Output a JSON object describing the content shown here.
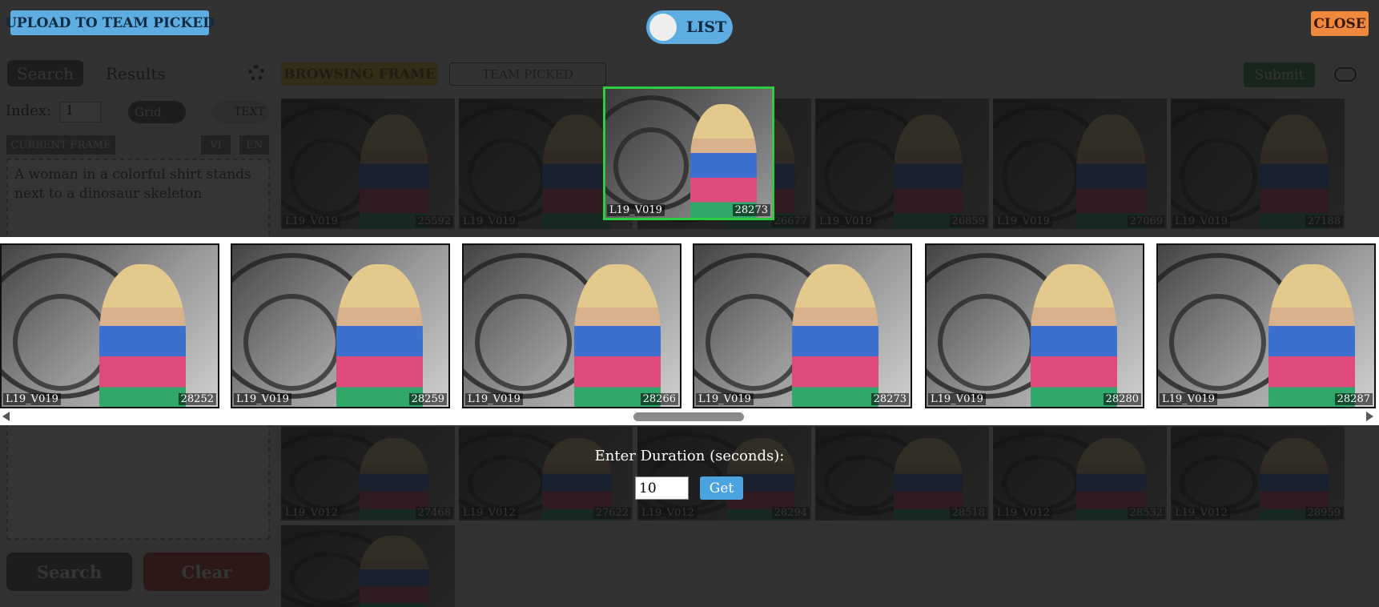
{
  "toolbar": {
    "upload": "UPLOAD TO TEAM PICKED",
    "toggle": "LIST",
    "close": "CLOSE"
  },
  "background": {
    "tabs": [
      "Search",
      "Results"
    ],
    "index_label": "Index:",
    "index_value": "1",
    "grid_toggle": "Grid",
    "text_toggle": "TEXT",
    "current_frame": "CURRENT FRAME",
    "languages": [
      "VI",
      "EN"
    ],
    "query": "A woman in a colorful shirt stands next to a dinosaur skeleton",
    "search_button": "Search",
    "clear_button": "Clear",
    "browsing_frame": "BROWSING FRAME",
    "team_picked": "TEAM PICKED",
    "submit": "Submit",
    "thumbnails": [
      {
        "video": "L19_V019",
        "frame": "25592"
      },
      {
        "video": "L19_V019"
      },
      {
        "frame": "26677"
      },
      {
        "video": "L19_V019",
        "frame": "26859"
      },
      {
        "video": "L19_V019",
        "frame": "27069"
      },
      {
        "video": "L19_V019",
        "frame": "27188"
      },
      {
        "video": "L19_V012",
        "frame": "27468"
      },
      {
        "video": "L19_V012",
        "frame": "27622"
      },
      {
        "video": "L19_V012",
        "frame": "28294"
      },
      {
        "frame": "28518"
      },
      {
        "video": "L19_V012",
        "frame": "28532"
      },
      {
        "video": "L19_V012",
        "frame": "28959"
      }
    ]
  },
  "selected": {
    "video": "L19_V019",
    "frame": "28273"
  },
  "strip": [
    {
      "video": "L19_V019",
      "frame": "28252"
    },
    {
      "video": "L19_V019",
      "frame": "28259"
    },
    {
      "video": "L19_V019",
      "frame": "28266"
    },
    {
      "video": "L19_V019",
      "frame": "28273"
    },
    {
      "video": "L19_V019",
      "frame": "28280"
    },
    {
      "video": "L19_V019",
      "frame": "28287"
    }
  ],
  "duration": {
    "label": "Enter Duration (seconds):",
    "value": "10",
    "button": "Get"
  }
}
